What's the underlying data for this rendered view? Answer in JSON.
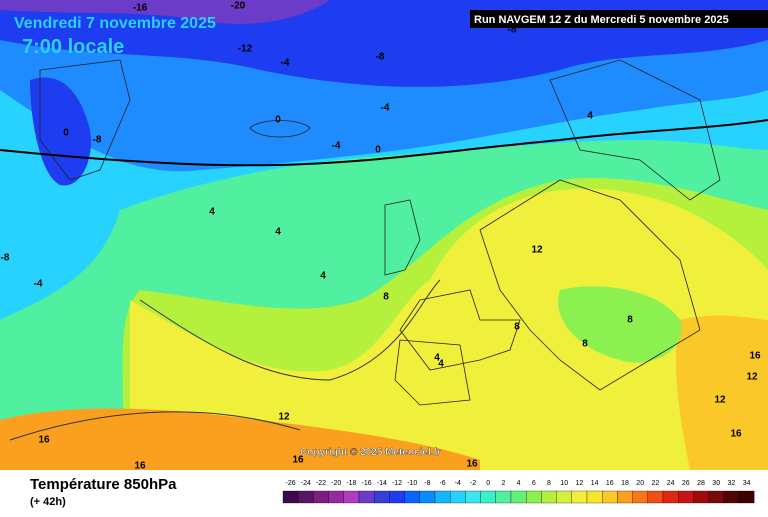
{
  "header": {
    "date": "Vendredi 7 novembre 2025",
    "time": "7:00 locale",
    "run": "Run NAVGEM 12 Z du Mercredi 5 novembre 2025",
    "copyright": "Copyright © 2025 Meteociel.fr"
  },
  "contour_labels": [
    -16,
    -20,
    -12,
    -4,
    -8,
    -8,
    -4,
    0,
    -4,
    0,
    -8,
    0,
    4,
    4,
    4,
    4,
    -8,
    -4,
    12,
    8,
    8,
    8,
    8,
    4,
    4,
    12,
    16,
    16,
    16,
    16,
    16,
    12,
    12,
    16
  ],
  "footer": {
    "title": "Température 850hPa",
    "lead": "(+ 42h)"
  },
  "scale": {
    "ticks": [
      -26,
      -24,
      -22,
      -20,
      -18,
      -16,
      -14,
      -12,
      -10,
      -8,
      -6,
      -4,
      -2,
      0,
      2,
      4,
      6,
      8,
      10,
      12,
      14,
      16,
      18,
      20,
      22,
      24,
      26,
      28,
      30,
      32,
      34
    ],
    "colors": [
      "#3c0a4a",
      "#5a1464",
      "#7a1e82",
      "#962aa0",
      "#b23cc0",
      "#6a3cc8",
      "#3c3cd8",
      "#1e3cf0",
      "#0a64ff",
      "#0a8cff",
      "#14b4ff",
      "#28d2ff",
      "#3ce6f0",
      "#3cf0c8",
      "#50f0a0",
      "#64f078",
      "#8cf050",
      "#b4f03c",
      "#d2f03c",
      "#f0f03c",
      "#fae628",
      "#fac828",
      "#faa01e",
      "#fa7814",
      "#f05014",
      "#dc2814",
      "#c81414",
      "#a00a0a",
      "#780a0a",
      "#500505",
      "#3c0000"
    ]
  }
}
